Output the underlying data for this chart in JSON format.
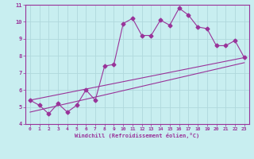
{
  "xlabel": "Windchill (Refroidissement éolien,°C)",
  "bg_color": "#c8eef0",
  "grid_color": "#b0d8dc",
  "line_color": "#993399",
  "axis_color": "#993399",
  "xlim": [
    -0.5,
    23.5
  ],
  "ylim": [
    4,
    11
  ],
  "xticks": [
    0,
    1,
    2,
    3,
    4,
    5,
    6,
    7,
    8,
    9,
    10,
    11,
    12,
    13,
    14,
    15,
    16,
    17,
    18,
    19,
    20,
    21,
    22,
    23
  ],
  "yticks": [
    4,
    5,
    6,
    7,
    8,
    9,
    10,
    11
  ],
  "line1_x": [
    0,
    1,
    2,
    3,
    4,
    5,
    6,
    7,
    8,
    9,
    10,
    11,
    12,
    13,
    14,
    15,
    16,
    17,
    18,
    19,
    20,
    21,
    22,
    23
  ],
  "line1_y": [
    5.4,
    5.1,
    4.6,
    5.2,
    4.7,
    5.1,
    6.0,
    5.4,
    7.4,
    7.5,
    9.9,
    10.2,
    9.2,
    9.2,
    10.1,
    9.8,
    10.8,
    10.4,
    9.7,
    9.6,
    8.6,
    8.6,
    8.9,
    7.9
  ],
  "line2_x": [
    0,
    23
  ],
  "line2_y": [
    5.4,
    7.9
  ],
  "line3_x": [
    0,
    23
  ],
  "line3_y": [
    4.7,
    7.6
  ],
  "marker_size": 2.5
}
